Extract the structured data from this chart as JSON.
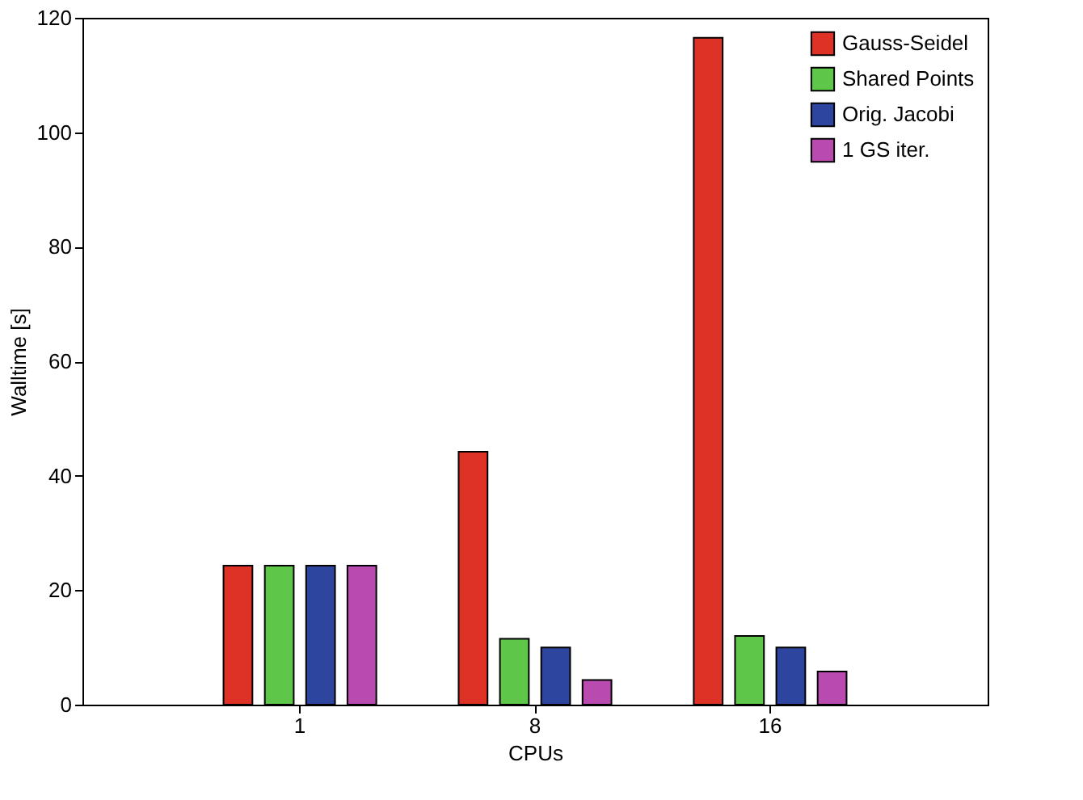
{
  "chart_data": {
    "type": "bar",
    "xlabel": "CPUs",
    "ylabel": "Walltime [s]",
    "categories": [
      "1",
      "8",
      "16"
    ],
    "series": [
      {
        "name": "Gauss-Seidel",
        "color": "#de3226",
        "values": [
          24.3,
          44.2,
          116.5
        ]
      },
      {
        "name": "Shared Points",
        "color": "#5ec74a",
        "values": [
          24.3,
          11.5,
          12
        ]
      },
      {
        "name": "Orig. Jacobi",
        "color": "#2e45a0",
        "values": [
          24.3,
          10,
          10
        ]
      },
      {
        "name": "1 GS iter.",
        "color": "#b94bb0",
        "values": [
          24.3,
          4.3,
          5.8
        ]
      }
    ],
    "ylim": [
      0,
      120
    ],
    "yticks": [
      0,
      20,
      40,
      60,
      80,
      100,
      120
    ],
    "grid": false,
    "legend": "top right"
  }
}
